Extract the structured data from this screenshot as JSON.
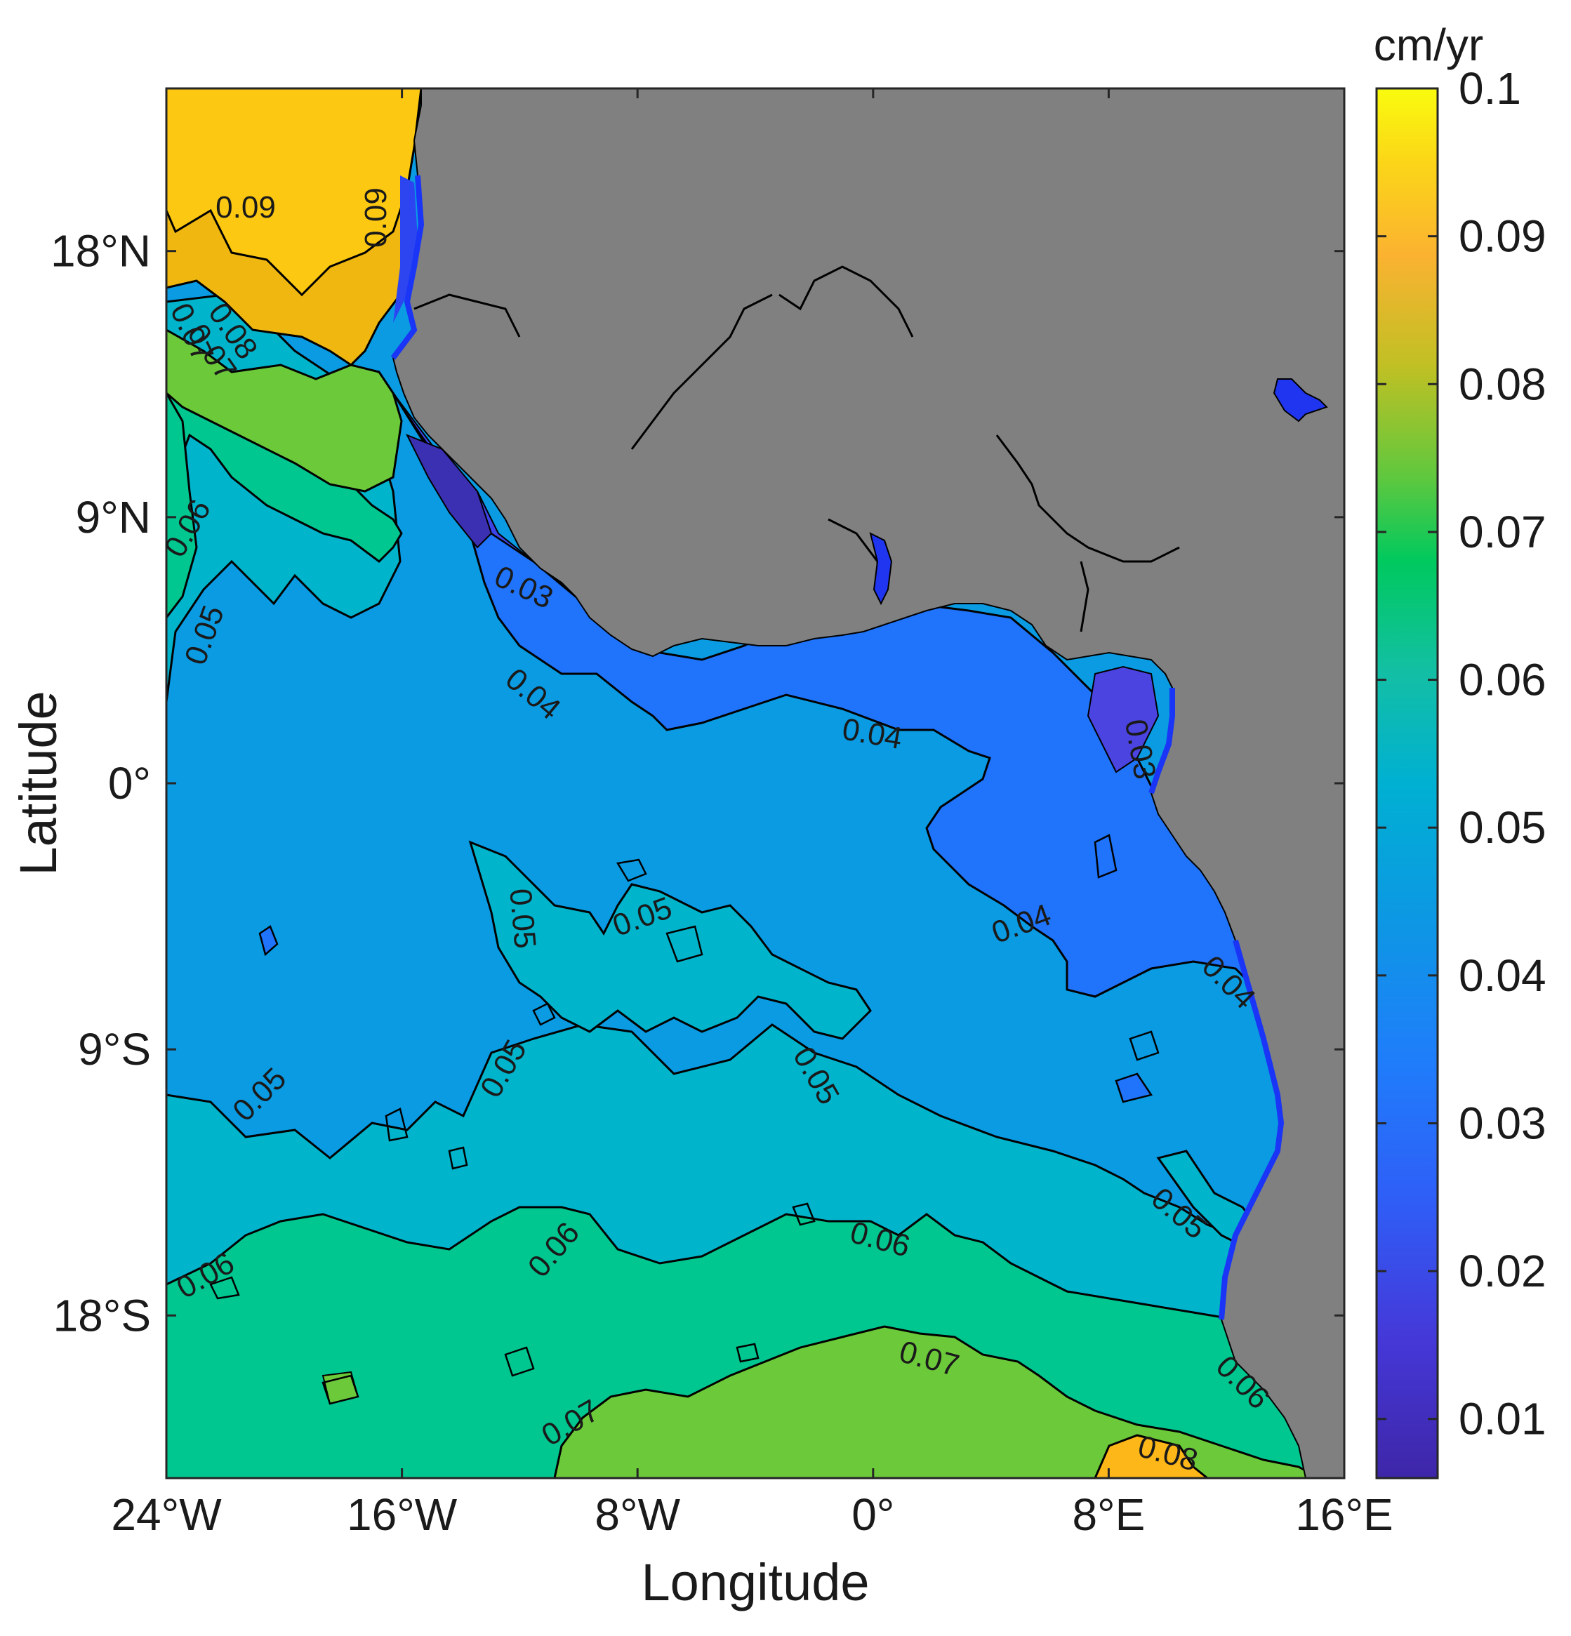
{
  "map": {
    "xlabel": "Longitude",
    "ylabel": "Latitude",
    "x_ticks": [
      "24°W",
      "16°W",
      "8°W",
      "0°",
      "8°E",
      "16°E"
    ],
    "y_ticks": [
      "18°N",
      "9°N",
      "0°",
      "9°S",
      "18°S"
    ],
    "lon_range": [
      -24,
      16
    ],
    "lat_range": [
      -23.5,
      23.5
    ],
    "land_color": "#808080",
    "contour_levels": [
      0.01,
      0.02,
      0.03,
      0.04,
      0.05,
      0.06,
      0.07,
      0.08,
      0.09,
      0.1
    ]
  },
  "colorbar": {
    "unit": "cm/yr",
    "ticks": [
      "0.1",
      "0.09",
      "0.08",
      "0.07",
      "0.06",
      "0.05",
      "0.04",
      "0.03",
      "0.02",
      "0.01"
    ],
    "range": [
      0.006,
      0.1
    ],
    "colormap": "parula"
  },
  "contour_labels": [
    {
      "text": "0.09"
    },
    {
      "text": "0.09"
    },
    {
      "text": "0.08"
    },
    {
      "text": "0.07"
    },
    {
      "text": "0.07"
    },
    {
      "text": "0.06"
    },
    {
      "text": "0.05"
    },
    {
      "text": "0.03"
    },
    {
      "text": "0.04"
    },
    {
      "text": "0.04"
    },
    {
      "text": "0.03"
    },
    {
      "text": "0.05"
    },
    {
      "text": "0.05"
    },
    {
      "text": "0.04"
    },
    {
      "text": "0.04"
    },
    {
      "text": "0.05"
    },
    {
      "text": "0.05"
    },
    {
      "text": "0.05"
    },
    {
      "text": "0.05"
    },
    {
      "text": "0.06"
    },
    {
      "text": "0.06"
    },
    {
      "text": "0.06"
    },
    {
      "text": "0.06"
    },
    {
      "text": "0.07"
    },
    {
      "text": "0.07"
    },
    {
      "text": "0.08"
    }
  ]
}
